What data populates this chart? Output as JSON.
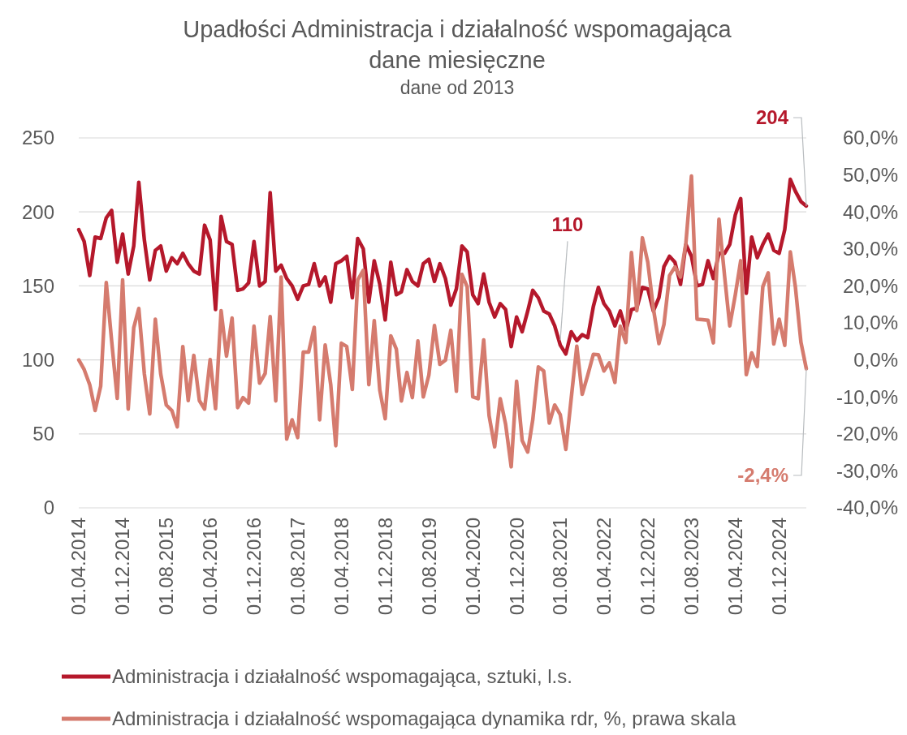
{
  "chart_data": {
    "type": "line",
    "title": "Upadłości  Administracja i działalność wspomagająca\ndane miesięczne",
    "subtitle": "dane od 2013",
    "x": [
      "2014-04",
      "2014-05",
      "2014-06",
      "2014-07",
      "2014-08",
      "2014-09",
      "2014-10",
      "2014-11",
      "2014-12",
      "2015-01",
      "2015-02",
      "2015-03",
      "2015-04",
      "2015-05",
      "2015-06",
      "2015-07",
      "2015-08",
      "2015-09",
      "2015-10",
      "2015-11",
      "2015-12",
      "2016-01",
      "2016-02",
      "2016-03",
      "2016-04",
      "2016-05",
      "2016-06",
      "2016-07",
      "2016-08",
      "2016-09",
      "2016-10",
      "2016-11",
      "2016-12",
      "2017-01",
      "2017-02",
      "2017-03",
      "2017-04",
      "2017-05",
      "2017-06",
      "2017-07",
      "2017-08",
      "2017-09",
      "2017-10",
      "2017-11",
      "2017-12",
      "2018-01",
      "2018-02",
      "2018-03",
      "2018-04",
      "2018-05",
      "2018-06",
      "2018-07",
      "2018-08",
      "2018-09",
      "2018-10",
      "2018-11",
      "2018-12",
      "2019-01",
      "2019-02",
      "2019-03",
      "2019-04",
      "2019-05",
      "2019-06",
      "2019-07",
      "2019-08",
      "2019-09",
      "2019-10",
      "2019-11",
      "2019-12",
      "2020-01",
      "2020-02",
      "2020-03",
      "2020-04",
      "2020-05",
      "2020-06",
      "2020-07",
      "2020-08",
      "2020-09",
      "2020-10",
      "2020-11",
      "2020-12",
      "2021-01",
      "2021-02",
      "2021-03",
      "2021-04",
      "2021-05",
      "2021-06",
      "2021-07",
      "2021-08",
      "2021-09",
      "2021-10",
      "2021-11",
      "2021-12",
      "2022-01",
      "2022-02",
      "2022-03",
      "2022-04",
      "2022-05",
      "2022-06",
      "2022-07",
      "2022-08",
      "2022-09",
      "2022-10",
      "2022-11",
      "2022-12",
      "2023-01",
      "2023-02",
      "2023-03",
      "2023-04",
      "2023-05",
      "2023-06",
      "2023-07",
      "2023-08",
      "2023-09",
      "2023-10",
      "2023-11",
      "2023-12",
      "2024-01",
      "2024-02",
      "2024-03",
      "2024-04",
      "2024-05",
      "2024-06",
      "2024-07",
      "2024-08",
      "2024-09",
      "2024-10",
      "2024-11",
      "2024-12",
      "2025-01",
      "2025-02",
      "2025-03",
      "2025-04",
      "2025-05"
    ],
    "series": [
      {
        "name": "Administracja i działalność wspomagająca, sztuki, l.s.",
        "color": "#b5182b",
        "values": [
          188,
          180,
          157,
          183,
          182,
          196,
          201,
          166,
          185,
          158,
          177,
          220,
          181,
          154,
          174,
          177,
          160,
          169,
          165,
          172,
          165,
          160,
          158,
          191,
          181,
          134,
          197,
          180,
          178,
          147,
          148,
          152,
          180,
          150,
          153,
          213,
          160,
          164,
          155,
          150,
          141,
          150,
          151,
          165,
          150,
          156,
          139,
          165,
          167,
          170,
          142,
          182,
          175,
          139,
          167,
          151,
          127,
          166,
          144,
          146,
          161,
          153,
          150,
          165,
          168,
          153,
          165,
          155,
          137,
          148,
          177,
          173,
          144,
          138,
          158,
          139,
          129,
          138,
          134,
          109,
          129,
          119,
          133,
          147,
          142,
          133,
          131,
          123,
          110,
          104,
          119,
          113,
          117,
          115,
          136,
          149,
          138,
          133,
          123,
          133,
          120,
          134,
          135,
          149,
          148,
          133,
          142,
          163,
          170,
          166,
          151,
          178,
          170,
          150,
          151,
          167,
          155,
          172,
          172,
          178,
          198,
          209,
          145,
          183,
          169,
          178,
          185,
          174,
          172,
          188,
          222,
          214,
          207,
          204
        ]
      },
      {
        "name": "Administracja i działalność wspomagająca dynamika rdr, %, prawa skala",
        "color": "#d57b6e",
        "axis": "y2",
        "values": [
          0.0,
          -2.6,
          -6.7,
          -13.7,
          -7.1,
          20.9,
          5.1,
          -10.4,
          21.6,
          -13.3,
          8.7,
          13.9,
          -3.8,
          -14.6,
          11.0,
          -3.8,
          -12.2,
          -13.7,
          -18.1,
          3.6,
          -11.0,
          1.2,
          -11.0,
          -13.3,
          0.1,
          -13.2,
          13.3,
          1.0,
          11.3,
          -12.9,
          -10.2,
          -11.7,
          9.1,
          -6.3,
          -3.7,
          11.7,
          -11.1,
          22.4,
          -21.4,
          -16.2,
          -21.0,
          2.1,
          2.1,
          8.8,
          -16.2,
          4.0,
          -6.7,
          -23.2,
          4.5,
          3.6,
          -8.0,
          21.6,
          24.2,
          -6.7,
          10.6,
          -8.2,
          -15.9,
          6.5,
          2.9,
          -11.1,
          -3.4,
          -10.2,
          5.1,
          -10.0,
          -4.1,
          9.3,
          -1.2,
          -0.1,
          8.0,
          -8.5,
          23.1,
          19.8,
          -10.0,
          -10.5,
          5.4,
          -15.1,
          -23.5,
          -10.5,
          -17.4,
          -28.9,
          -5.8,
          -21.8,
          -24.9,
          -16.2,
          -1.9,
          -3.0,
          -17.1,
          -12.2,
          -14.8,
          -24.2,
          -10.4,
          3.7,
          -9.3,
          -4.1,
          1.5,
          1.4,
          -3.0,
          -0.8,
          -6.1,
          9.1,
          4.7,
          29.0,
          13.3,
          33.0,
          26.4,
          13.9,
          4.4,
          9.6,
          22.8,
          25.1,
          22.4,
          31.6,
          49.7,
          11.0,
          10.9,
          10.7,
          4.6,
          38.0,
          22.8,
          9.2,
          17.6,
          26.8,
          -4.0,
          1.9,
          -1.8,
          19.8,
          23.5,
          4.3,
          11.0,
          3.9,
          29.2,
          19.8,
          4.8,
          -2.4
        ]
      }
    ],
    "xlim": [
      "2014-04",
      "2025-05"
    ],
    "xticks": [
      {
        "value": "2014-04",
        "label": "01.04.2014"
      },
      {
        "value": "2014-12",
        "label": "01.12.2014"
      },
      {
        "value": "2015-08",
        "label": "01.08.2015"
      },
      {
        "value": "2016-04",
        "label": "01.04.2016"
      },
      {
        "value": "2016-12",
        "label": "01.12.2016"
      },
      {
        "value": "2017-08",
        "label": "01.08.2017"
      },
      {
        "value": "2018-04",
        "label": "01.04.2018"
      },
      {
        "value": "2018-12",
        "label": "01.12.2018"
      },
      {
        "value": "2019-08",
        "label": "01.08.2019"
      },
      {
        "value": "2020-04",
        "label": "01.04.2020"
      },
      {
        "value": "2020-12",
        "label": "01.12.2020"
      },
      {
        "value": "2021-08",
        "label": "01.08.2021"
      },
      {
        "value": "2022-04",
        "label": "01.04.2022"
      },
      {
        "value": "2022-12",
        "label": "01.12.2022"
      },
      {
        "value": "2023-08",
        "label": "01.08.2023"
      },
      {
        "value": "2024-04",
        "label": "01.04.2024"
      },
      {
        "value": "2024-12",
        "label": "01.12.2024"
      }
    ],
    "ylim": [
      0,
      250
    ],
    "yticks": [
      0,
      50,
      100,
      150,
      200,
      250
    ],
    "y2lim": [
      -40,
      60
    ],
    "y2ticks": [
      {
        "value": -40,
        "label": "-40,0%"
      },
      {
        "value": -30,
        "label": "-30,0%"
      },
      {
        "value": -20,
        "label": "-20,0%"
      },
      {
        "value": -10,
        "label": "-10,0%"
      },
      {
        "value": 0,
        "label": "0,0%"
      },
      {
        "value": 10,
        "label": "10,0%"
      },
      {
        "value": 20,
        "label": "20,0%"
      },
      {
        "value": 30,
        "label": "30,0%"
      },
      {
        "value": 40,
        "label": "40,0%"
      },
      {
        "value": 50,
        "label": "50,0%"
      },
      {
        "value": 60,
        "label": "60,0%"
      }
    ],
    "grid": "y",
    "legend": "bottom",
    "line_style": "solid",
    "annotations": [
      {
        "text": "110",
        "x": "2021-08",
        "y": 110
      },
      {
        "text": "204",
        "x": "2025-05",
        "y": 204
      },
      {
        "text": "-2,4%",
        "x": "2025-05",
        "y": 94
      }
    ]
  }
}
